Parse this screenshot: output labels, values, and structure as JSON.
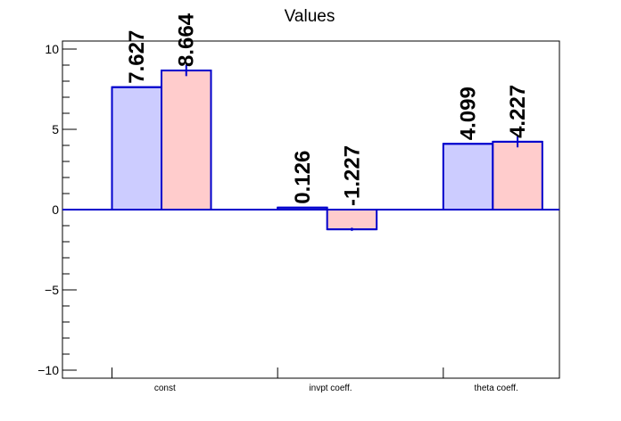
{
  "chart_data": {
    "type": "bar",
    "title": "Values",
    "xlabel": "",
    "ylabel": "",
    "categories": [
      "const",
      "invpt coeff.",
      "theta coeff."
    ],
    "ylim": [
      -10.5,
      10.5
    ],
    "yticks": [
      -10,
      -5,
      0,
      5,
      10
    ],
    "ytick_labels": [
      "−10",
      "−5",
      "0",
      "5",
      "10"
    ],
    "series": [
      {
        "values": [
          7.627,
          0.126,
          4.099
        ],
        "labels": [
          "7.627",
          "0.126",
          "4.099"
        ],
        "fill": "#ccccff",
        "stroke": "#0000cc",
        "errors": [
          0,
          0,
          0
        ]
      },
      {
        "values": [
          8.664,
          -1.227,
          4.227
        ],
        "labels": [
          "8.664",
          "-1.227",
          "4.227"
        ],
        "fill": "#ffcccc",
        "stroke": "#0000cc",
        "errors": [
          0.35,
          0.1,
          0.35
        ]
      }
    ],
    "grid": false,
    "legend": "none"
  }
}
